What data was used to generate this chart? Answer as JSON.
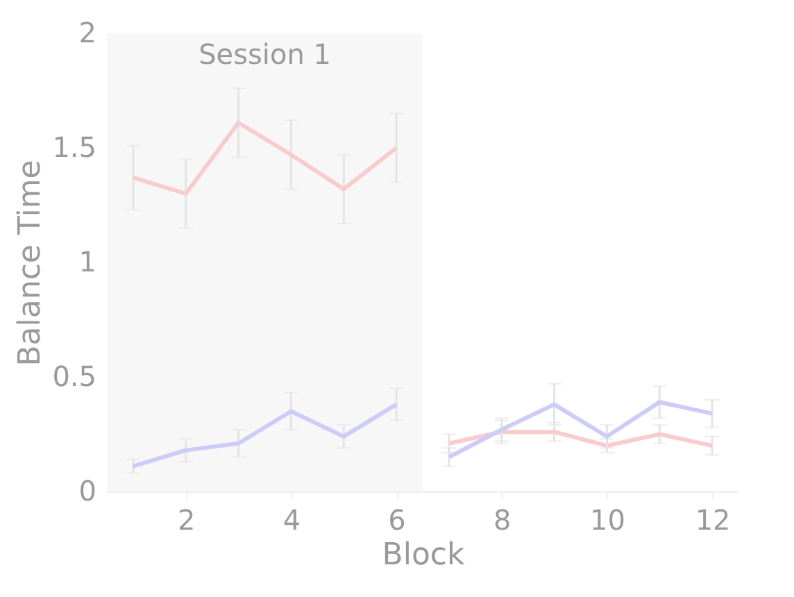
{
  "chart_data": {
    "type": "line",
    "xlabel": "Block",
    "ylabel": "Balance Time",
    "xlim": [
      0.5,
      12.5
    ],
    "xticks": [
      2,
      4,
      6,
      8,
      10,
      12
    ],
    "ylim": [
      0,
      2
    ],
    "yticks": [
      0,
      0.5,
      1,
      1.5,
      2
    ],
    "grid": false,
    "marker": "none",
    "bands": [
      {
        "axis": "x",
        "from": 0.5,
        "to": 6.5,
        "label": "Session 1",
        "color": "#f7f7f7"
      }
    ],
    "series": [
      {
        "color": "#f8cccc",
        "x": [
          1,
          2,
          3,
          4,
          5,
          6
        ],
        "values": [
          1.37,
          1.3,
          1.61,
          1.47,
          1.32,
          1.5
        ],
        "errors": [
          0.14,
          0.15,
          0.15,
          0.15,
          0.15,
          0.15
        ]
      },
      {
        "color": "#ccccf8",
        "x": [
          1,
          2,
          3,
          4,
          5,
          6
        ],
        "values": [
          0.11,
          0.18,
          0.21,
          0.35,
          0.24,
          0.38
        ],
        "errors": [
          0.03,
          0.05,
          0.06,
          0.08,
          0.05,
          0.07
        ]
      },
      {
        "color": "#f8cccc",
        "x": [
          7,
          8,
          9,
          10,
          11,
          12
        ],
        "values": [
          0.21,
          0.26,
          0.26,
          0.2,
          0.25,
          0.2
        ],
        "errors": [
          0.04,
          0.05,
          0.04,
          0.03,
          0.04,
          0.04
        ]
      },
      {
        "color": "#ccccf8",
        "x": [
          7,
          8,
          9,
          10,
          11,
          12
        ],
        "values": [
          0.15,
          0.27,
          0.38,
          0.24,
          0.39,
          0.34
        ],
        "errors": [
          0.04,
          0.05,
          0.09,
          0.05,
          0.07,
          0.06
        ]
      }
    ]
  }
}
